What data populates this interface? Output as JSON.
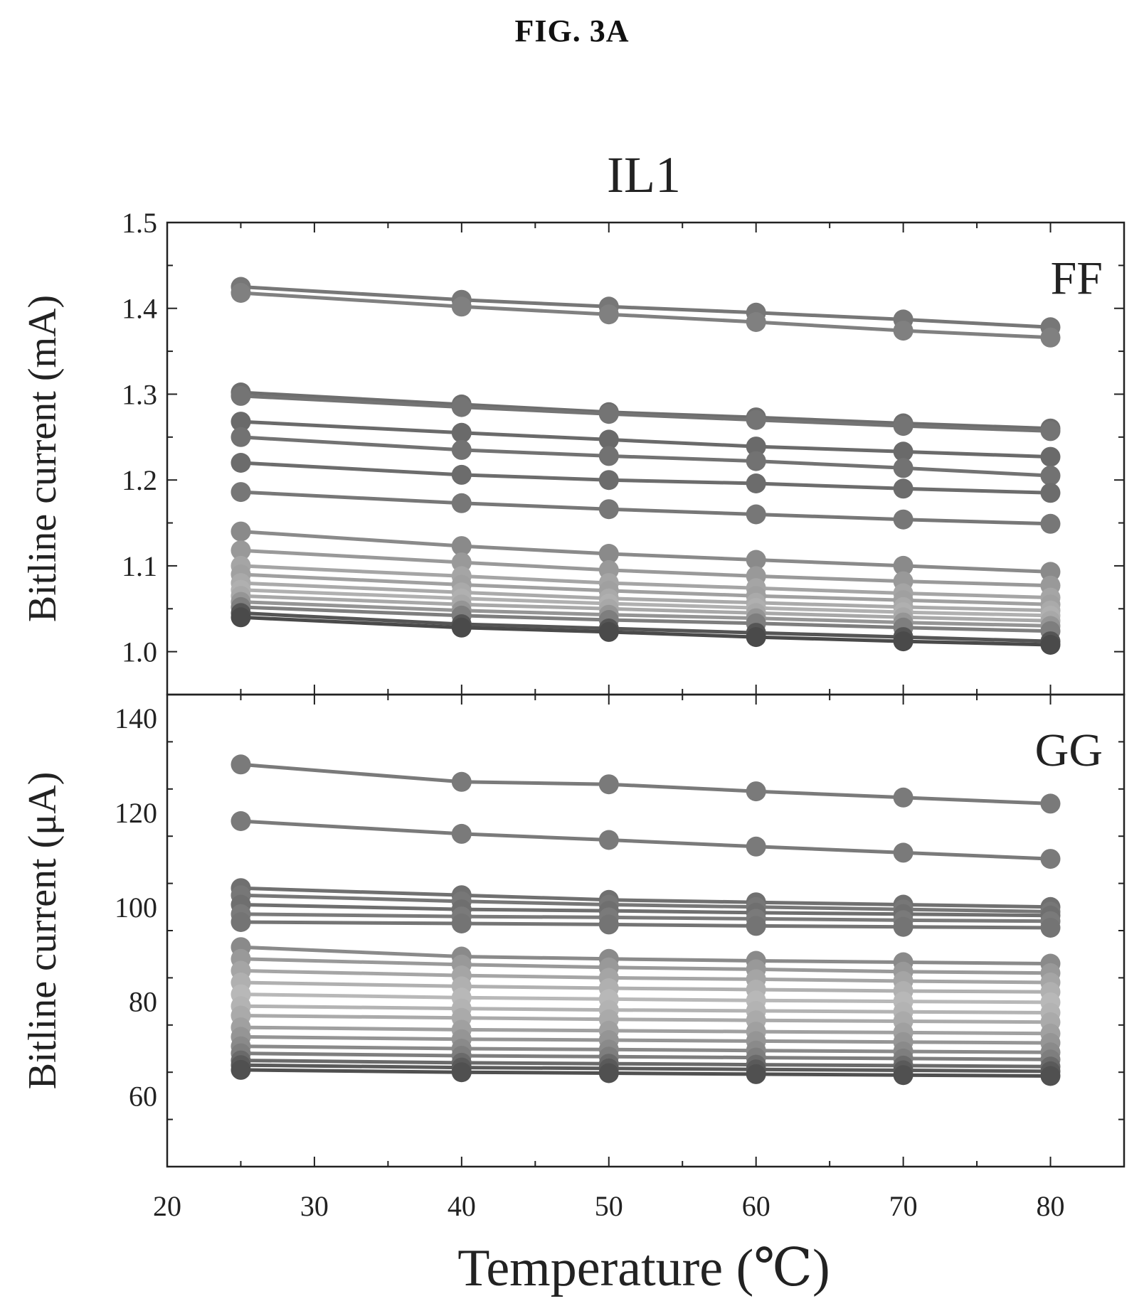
{
  "figure_label": "FIG. 3A",
  "chart_data": {
    "type": "line",
    "title": "IL1",
    "xlabel": "Temperature (℃)",
    "xlim": [
      20,
      85
    ],
    "x_ticks": [
      20,
      30,
      40,
      50,
      60,
      70,
      80
    ],
    "x": [
      25,
      40,
      50,
      60,
      70,
      80
    ],
    "grid": false,
    "panels": [
      {
        "tag": "FF",
        "ylabel": "Bitline current (mA)",
        "ylim": [
          0.95,
          1.5
        ],
        "y_ticks": [
          1.0,
          1.1,
          1.2,
          1.3,
          1.4,
          1.5
        ],
        "y_tick_labels": [
          "1.0",
          "1.1",
          "1.2",
          "1.3",
          "1.4",
          "1.5"
        ],
        "series": [
          {
            "values": [
              1.425,
              1.41,
              1.402,
              1.395,
              1.387,
              1.378
            ],
            "color": "#777777"
          },
          {
            "values": [
              1.418,
              1.402,
              1.393,
              1.384,
              1.374,
              1.366
            ],
            "color": "#808080"
          },
          {
            "values": [
              1.302,
              1.288,
              1.279,
              1.273,
              1.266,
              1.26
            ],
            "color": "#6e6e6e"
          },
          {
            "values": [
              1.298,
              1.285,
              1.277,
              1.27,
              1.263,
              1.257
            ],
            "color": "#747474"
          },
          {
            "values": [
              1.268,
              1.255,
              1.247,
              1.239,
              1.233,
              1.227
            ],
            "color": "#6a6a6a"
          },
          {
            "values": [
              1.25,
              1.235,
              1.228,
              1.222,
              1.214,
              1.205
            ],
            "color": "#727272"
          },
          {
            "values": [
              1.22,
              1.206,
              1.2,
              1.196,
              1.19,
              1.185
            ],
            "color": "#6c6c6c"
          },
          {
            "values": [
              1.186,
              1.173,
              1.166,
              1.16,
              1.154,
              1.149
            ],
            "color": "#777777"
          },
          {
            "values": [
              1.14,
              1.123,
              1.114,
              1.107,
              1.1,
              1.093
            ],
            "color": "#8a8a8a"
          },
          {
            "values": [
              1.118,
              1.104,
              1.095,
              1.088,
              1.082,
              1.077
            ],
            "color": "#999999"
          },
          {
            "values": [
              1.1,
              1.088,
              1.08,
              1.074,
              1.068,
              1.063
            ],
            "color": "#a5a5a5"
          },
          {
            "values": [
              1.09,
              1.078,
              1.071,
              1.065,
              1.06,
              1.055
            ],
            "color": "#a0a0a0"
          },
          {
            "values": [
              1.08,
              1.069,
              1.062,
              1.057,
              1.052,
              1.048
            ],
            "color": "#aaaaaa"
          },
          {
            "values": [
              1.072,
              1.062,
              1.056,
              1.051,
              1.046,
              1.042
            ],
            "color": "#b0b0b0"
          },
          {
            "values": [
              1.065,
              1.055,
              1.05,
              1.045,
              1.04,
              1.036
            ],
            "color": "#a8a8a8"
          },
          {
            "values": [
              1.058,
              1.048,
              1.043,
              1.039,
              1.034,
              1.03
            ],
            "color": "#959595"
          },
          {
            "values": [
              1.052,
              1.042,
              1.037,
              1.033,
              1.028,
              1.024
            ],
            "color": "#7e7e7e"
          },
          {
            "values": [
              1.045,
              1.032,
              1.027,
              1.022,
              1.017,
              1.012
            ],
            "color": "#555555"
          },
          {
            "values": [
              1.04,
              1.028,
              1.023,
              1.017,
              1.012,
              1.008
            ],
            "color": "#4a4a4a"
          }
        ]
      },
      {
        "tag": "GG",
        "ylabel": "Bitline current (μA)",
        "ylim": [
          45,
          145
        ],
        "y_ticks": [
          60,
          80,
          100,
          120,
          140
        ],
        "y_tick_labels": [
          "60",
          "80",
          "100",
          "120",
          "140"
        ],
        "series": [
          {
            "values": [
              130.2,
              126.5,
              126.0,
              124.5,
              123.2,
              121.9
            ],
            "color": "#7a7a7a"
          },
          {
            "values": [
              118.2,
              115.5,
              114.2,
              112.8,
              111.5,
              110.2
            ],
            "color": "#7a7a7a"
          },
          {
            "values": [
              104.0,
              102.5,
              101.5,
              101.0,
              100.5,
              100.0
            ],
            "color": "#707070"
          },
          {
            "values": [
              102.5,
              101.2,
              100.5,
              100.0,
              99.5,
              99.0
            ],
            "color": "#777777"
          },
          {
            "values": [
              100.5,
              99.5,
              99.2,
              98.8,
              98.5,
              98.2
            ],
            "color": "#6f6f6f"
          },
          {
            "values": [
              98.5,
              98.0,
              97.8,
              97.5,
              97.2,
              97.0
            ],
            "color": "#7a7a7a"
          },
          {
            "values": [
              96.8,
              96.5,
              96.3,
              96.0,
              95.8,
              95.6
            ],
            "color": "#747474"
          },
          {
            "values": [
              91.5,
              89.5,
              89.0,
              88.6,
              88.3,
              88.0
            ],
            "color": "#8a8a8a"
          },
          {
            "values": [
              89.0,
              87.8,
              87.2,
              86.8,
              86.3,
              86.0
            ],
            "color": "#999999"
          },
          {
            "values": [
              86.5,
              85.5,
              85.0,
              84.7,
              84.3,
              84.0
            ],
            "color": "#a5a5a5"
          },
          {
            "values": [
              84.0,
              83.2,
              82.8,
              82.5,
              82.2,
              82.0
            ],
            "color": "#b0b0b0"
          },
          {
            "values": [
              81.5,
              80.8,
              80.5,
              80.2,
              80.0,
              79.8
            ],
            "color": "#b8b8b8"
          },
          {
            "values": [
              79.0,
              78.5,
              78.2,
              78.0,
              77.8,
              77.6
            ],
            "color": "#b3b3b3"
          },
          {
            "values": [
              77.0,
              76.5,
              76.2,
              76.0,
              75.8,
              75.6
            ],
            "color": "#aaaaaa"
          },
          {
            "values": [
              74.5,
              74.0,
              73.8,
              73.6,
              73.4,
              73.2
            ],
            "color": "#a0a0a0"
          },
          {
            "values": [
              72.5,
              72.0,
              71.8,
              71.6,
              71.4,
              71.2
            ],
            "color": "#959595"
          },
          {
            "values": [
              70.5,
              70.0,
              69.8,
              69.6,
              69.4,
              69.2
            ],
            "color": "#8a8a8a"
          },
          {
            "values": [
              69.0,
              68.5,
              68.3,
              68.1,
              67.9,
              67.7
            ],
            "color": "#7e7e7e"
          },
          {
            "values": [
              67.5,
              67.0,
              66.8,
              66.6,
              66.4,
              66.2
            ],
            "color": "#6a6a6a"
          },
          {
            "values": [
              66.5,
              66.0,
              65.8,
              65.6,
              65.4,
              65.2
            ],
            "color": "#5a5a5a"
          },
          {
            "values": [
              65.5,
              65.0,
              64.8,
              64.6,
              64.4,
              64.2
            ],
            "color": "#505050"
          }
        ]
      }
    ]
  }
}
